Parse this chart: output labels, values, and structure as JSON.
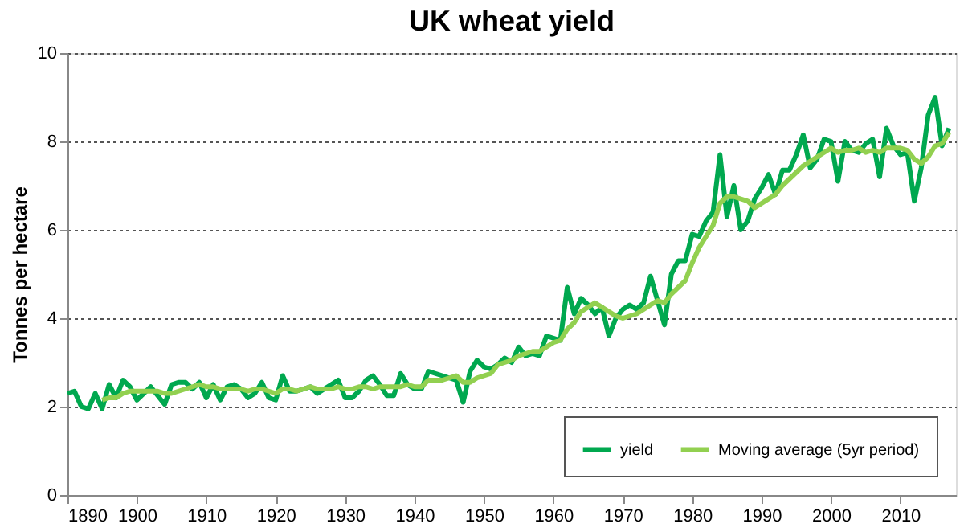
{
  "chart_data": {
    "type": "line",
    "title": "UK wheat yield",
    "ylabel": "Tonnes per hectare",
    "x": [
      1890,
      1891,
      1892,
      1893,
      1894,
      1895,
      1896,
      1897,
      1898,
      1899,
      1900,
      1901,
      1902,
      1903,
      1904,
      1905,
      1906,
      1907,
      1908,
      1909,
      1910,
      1911,
      1912,
      1913,
      1914,
      1915,
      1916,
      1917,
      1918,
      1919,
      1920,
      1921,
      1922,
      1923,
      1924,
      1925,
      1926,
      1927,
      1928,
      1929,
      1930,
      1931,
      1932,
      1933,
      1934,
      1935,
      1936,
      1937,
      1938,
      1939,
      1940,
      1941,
      1942,
      1943,
      1944,
      1945,
      1946,
      1947,
      1948,
      1949,
      1950,
      1951,
      1952,
      1953,
      1954,
      1955,
      1956,
      1957,
      1958,
      1959,
      1960,
      1961,
      1962,
      1963,
      1964,
      1965,
      1966,
      1967,
      1968,
      1969,
      1970,
      1971,
      1972,
      1973,
      1974,
      1975,
      1976,
      1977,
      1978,
      1979,
      1980,
      1981,
      1982,
      1983,
      1984,
      1985,
      1986,
      1987,
      1988,
      1989,
      1990,
      1991,
      1992,
      1993,
      1994,
      1995,
      1996,
      1997,
      1998,
      1999,
      2000,
      2001,
      2002,
      2003,
      2004,
      2005,
      2006,
      2007,
      2008,
      2009,
      2010,
      2011,
      2012,
      2013,
      2014,
      2015,
      2016,
      2017
    ],
    "series": [
      {
        "name": "yield",
        "color": "#00a84f",
        "values": [
          2.3,
          2.35,
          2.0,
          1.95,
          2.3,
          1.95,
          2.5,
          2.2,
          2.6,
          2.45,
          2.15,
          2.3,
          2.45,
          2.25,
          2.05,
          2.5,
          2.55,
          2.55,
          2.4,
          2.55,
          2.2,
          2.5,
          2.15,
          2.45,
          2.5,
          2.4,
          2.2,
          2.3,
          2.55,
          2.2,
          2.15,
          2.7,
          2.35,
          2.35,
          2.4,
          2.45,
          2.3,
          2.4,
          2.5,
          2.6,
          2.2,
          2.2,
          2.35,
          2.6,
          2.7,
          2.5,
          2.25,
          2.25,
          2.75,
          2.5,
          2.4,
          2.4,
          2.8,
          2.75,
          2.7,
          2.65,
          2.6,
          2.1,
          2.8,
          3.05,
          2.9,
          2.85,
          2.95,
          3.1,
          3.0,
          3.35,
          3.15,
          3.2,
          3.15,
          3.6,
          3.55,
          3.5,
          4.7,
          4.1,
          4.45,
          4.3,
          4.1,
          4.25,
          3.6,
          4.0,
          4.2,
          4.3,
          4.2,
          4.35,
          4.95,
          4.4,
          3.85,
          5.0,
          5.3,
          5.3,
          5.9,
          5.85,
          6.2,
          6.4,
          7.7,
          6.3,
          7.0,
          6.0,
          6.2,
          6.7,
          6.95,
          7.25,
          6.8,
          7.35,
          7.35,
          7.7,
          8.15,
          7.4,
          7.6,
          8.05,
          8.0,
          7.1,
          8.0,
          7.8,
          7.75,
          7.95,
          8.05,
          7.2,
          8.3,
          7.9,
          7.7,
          7.75,
          6.65,
          7.4,
          8.6,
          9.0,
          7.9,
          8.3
        ]
      },
      {
        "name": "Moving average (5yr period)",
        "color": "#92d050",
        "values": [
          null,
          null,
          null,
          null,
          null,
          2.15,
          2.2,
          2.2,
          2.3,
          2.35,
          2.35,
          2.35,
          2.35,
          2.35,
          2.3,
          2.3,
          2.35,
          2.4,
          2.45,
          2.5,
          2.45,
          2.45,
          2.4,
          2.4,
          2.4,
          2.4,
          2.35,
          2.4,
          2.4,
          2.35,
          2.3,
          2.4,
          2.4,
          2.35,
          2.4,
          2.45,
          2.4,
          2.4,
          2.4,
          2.45,
          2.4,
          2.4,
          2.45,
          2.45,
          2.4,
          2.45,
          2.45,
          2.45,
          2.45,
          2.5,
          2.45,
          2.45,
          2.6,
          2.6,
          2.6,
          2.65,
          2.7,
          2.55,
          2.55,
          2.65,
          2.7,
          2.75,
          2.95,
          3.0,
          3.05,
          3.15,
          3.2,
          3.25,
          3.25,
          3.35,
          3.45,
          3.5,
          3.75,
          3.9,
          4.15,
          4.25,
          4.35,
          4.25,
          4.15,
          4.05,
          4.0,
          4.05,
          4.1,
          4.2,
          4.3,
          4.4,
          4.35,
          4.55,
          4.7,
          4.85,
          5.25,
          5.6,
          5.85,
          6.1,
          6.6,
          6.75,
          6.75,
          6.7,
          6.65,
          6.5,
          6.6,
          6.7,
          6.8,
          7.0,
          7.15,
          7.3,
          7.45,
          7.55,
          7.65,
          7.75,
          7.85,
          7.75,
          7.8,
          7.8,
          7.85,
          7.75,
          7.8,
          7.75,
          7.85,
          7.85,
          7.85,
          7.8,
          7.6,
          7.5,
          7.65,
          7.9,
          7.95,
          8.2
        ]
      }
    ],
    "xlim": [
      1890,
      2018
    ],
    "xticks": [
      1890,
      1900,
      1910,
      1920,
      1930,
      1940,
      1950,
      1960,
      1970,
      1980,
      1990,
      2000,
      2010
    ],
    "ylim": [
      0,
      10
    ],
    "yticks": [
      0,
      2,
      4,
      6,
      8,
      10
    ],
    "grid": "y",
    "legend": "bottom right",
    "marker": "none",
    "line_style": "solid"
  }
}
